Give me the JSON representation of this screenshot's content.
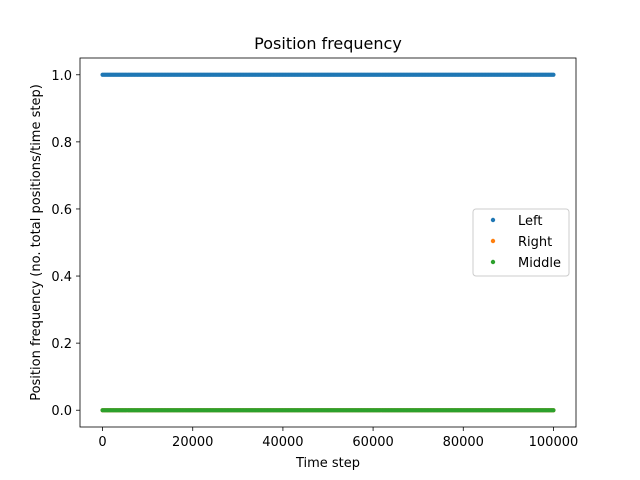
{
  "chart_data": {
    "type": "scatter",
    "title": "Position frequency",
    "xlabel": "Time step",
    "ylabel": "Position frequency (no. total positions/time step)",
    "xlim": [
      -5000,
      105000
    ],
    "ylim": [
      -0.05,
      1.05
    ],
    "xticks": [
      0,
      20000,
      40000,
      60000,
      80000,
      100000
    ],
    "xtick_labels": [
      "0",
      "20000",
      "40000",
      "60000",
      "80000",
      "100000"
    ],
    "yticks": [
      0.0,
      0.2,
      0.4,
      0.6,
      0.8,
      1.0
    ],
    "ytick_labels": [
      "0.0",
      "0.2",
      "0.4",
      "0.6",
      "0.8",
      "1.0"
    ],
    "grid": false,
    "legend_position": "center-right",
    "series": [
      {
        "name": "Left",
        "color": "#1f77b4",
        "x_range": [
          0,
          100000
        ],
        "y": 1.0
      },
      {
        "name": "Right",
        "color": "#ff7f0e",
        "x_range": [
          0,
          100000
        ],
        "y": 0.0
      },
      {
        "name": "Middle",
        "color": "#2ca02c",
        "x_range": [
          0,
          100000
        ],
        "y": 0.0
      }
    ]
  }
}
